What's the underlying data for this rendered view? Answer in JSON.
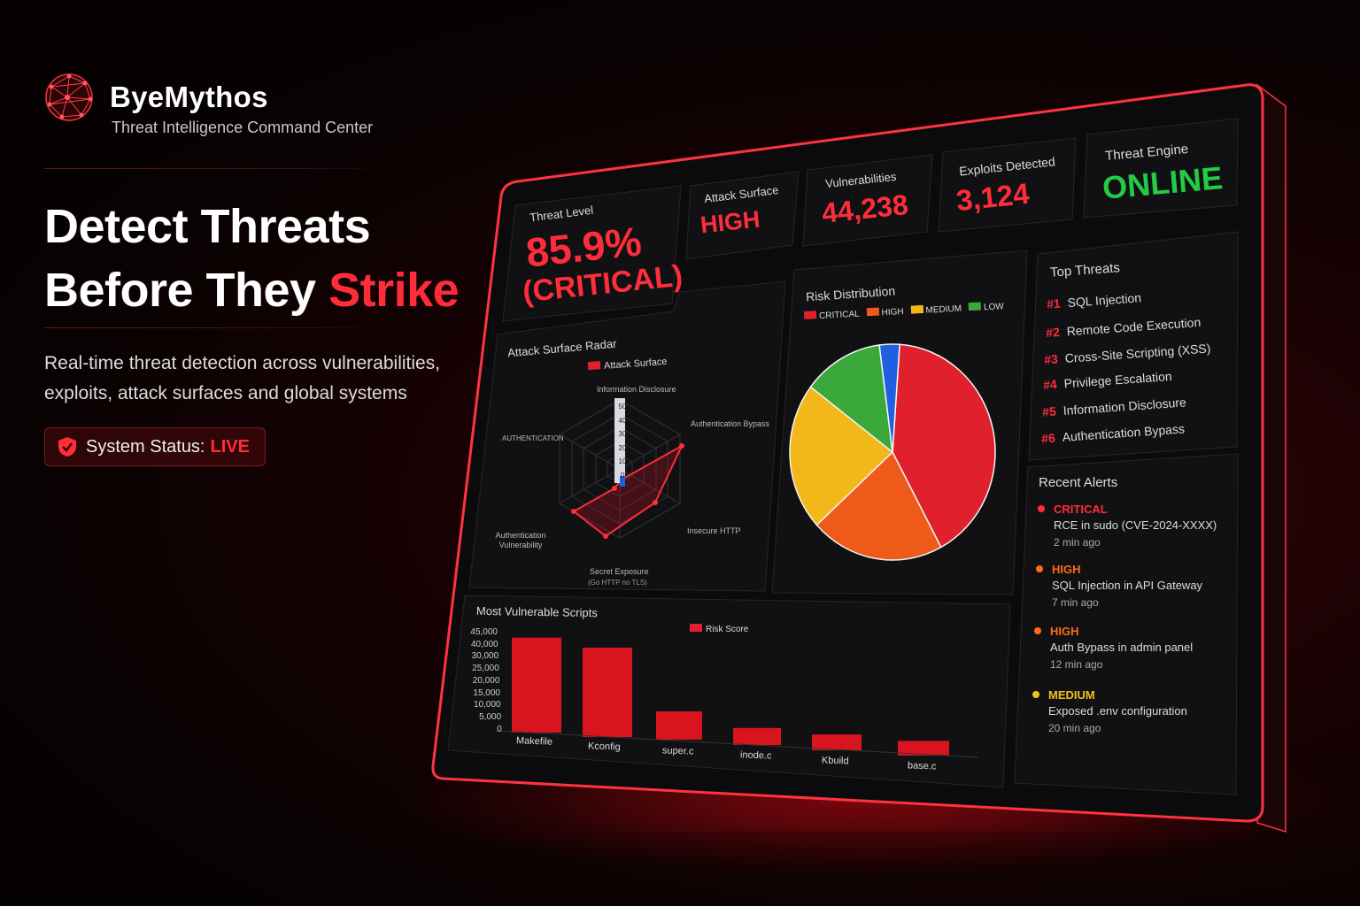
{
  "brand": {
    "name": "ByeMythos",
    "tagline": "Threat Intelligence Command Center"
  },
  "hero": {
    "headline_line1": "Detect Threats",
    "headline_line2_prefix": "Before They ",
    "headline_line2_accent": "Strike",
    "subtext_line1": "Real-time threat detection across vulnerabilities,",
    "subtext_line2": "exploits, attack surfaces and global systems",
    "status_label": "System Status:",
    "status_value": "LIVE"
  },
  "kpis": {
    "threat_level_label": "Threat Level",
    "threat_level_value": "85.9%",
    "threat_level_severity": "(CRITICAL)",
    "attack_surface_label": "Attack Surface",
    "attack_surface_value": "HIGH",
    "vulnerabilities_label": "Vulnerabilities",
    "vulnerabilities_value": "44,238",
    "exploits_label": "Exploits Detected",
    "exploits_value": "3,124",
    "engine_label": "Threat Engine",
    "engine_value": "ONLINE"
  },
  "radar": {
    "title": "Attack Surface Radar",
    "legend": "Attack Surface",
    "axes": [
      "Information Disclosure",
      "Authentication Bypass",
      "Insecure HTTP",
      "Secret Exposure",
      "Authentication Vulnerability",
      "AUTHENTICATION"
    ],
    "axis_note": "(Go HTTP no TLS)",
    "ticks": [
      "0",
      "10",
      "20",
      "30",
      "40",
      "50"
    ],
    "values": [
      5,
      45,
      30,
      35,
      40,
      2
    ]
  },
  "risk": {
    "title": "Risk Distribution",
    "legend": [
      "CRITICAL",
      "HIGH",
      "MEDIUM",
      "LOW"
    ],
    "colors": {
      "critical": "#e0202c",
      "high": "#ee5a1a",
      "medium": "#f2b81a",
      "low": "#3aa83a",
      "info": "#2060e0"
    }
  },
  "chart_data": [
    {
      "type": "pie",
      "title": "Risk Distribution",
      "labels": [
        "CRITICAL",
        "HIGH",
        "MEDIUM",
        "LOW",
        ""
      ],
      "values": [
        39,
        20,
        21,
        12,
        3
      ]
    },
    {
      "type": "bar",
      "title": "Most Vulnerable Scripts",
      "categories": [
        "Makefile",
        "Kconfig",
        "super.c",
        "inode.c",
        "Kbuild",
        "base.c"
      ],
      "series": [
        {
          "name": "Risk Score",
          "values": [
            42000,
            39500,
            12500,
            7500,
            7000,
            6500
          ]
        }
      ],
      "yticks": [
        "45,000",
        "40,000",
        "30,000",
        "25,000",
        "20,000",
        "15,000",
        "10,000",
        "5,000",
        "0"
      ],
      "ylim": [
        0,
        45000
      ]
    }
  ],
  "bars": {
    "title": "Most Vulnerable Scripts",
    "legend": "Risk Score"
  },
  "top_threats": {
    "title": "Top Threats",
    "items": [
      {
        "rank": "#1",
        "name": "SQL Injection"
      },
      {
        "rank": "#2",
        "name": "Remote Code Execution"
      },
      {
        "rank": "#3",
        "name": "Cross-Site Scripting (XSS)"
      },
      {
        "rank": "#4",
        "name": "Privilege Escalation"
      },
      {
        "rank": "#5",
        "name": "Information Disclosure"
      },
      {
        "rank": "#6",
        "name": "Authentication Bypass"
      }
    ]
  },
  "alerts": {
    "title": "Recent Alerts",
    "items": [
      {
        "level": "CRITICAL",
        "text": "RCE in sudo (CVE-2024-XXXX)",
        "time": "2 min ago",
        "color": "#ff2d3a"
      },
      {
        "level": "HIGH",
        "text": "SQL Injection in API Gateway",
        "time": "7 min ago",
        "color": "#ff6a1a"
      },
      {
        "level": "HIGH",
        "text": "Auth Bypass in admin panel",
        "time": "12 min ago",
        "color": "#ff6a1a"
      },
      {
        "level": "MEDIUM",
        "text": "Exposed .env configuration",
        "time": "20 min ago",
        "color": "#f2c21a"
      }
    ]
  }
}
